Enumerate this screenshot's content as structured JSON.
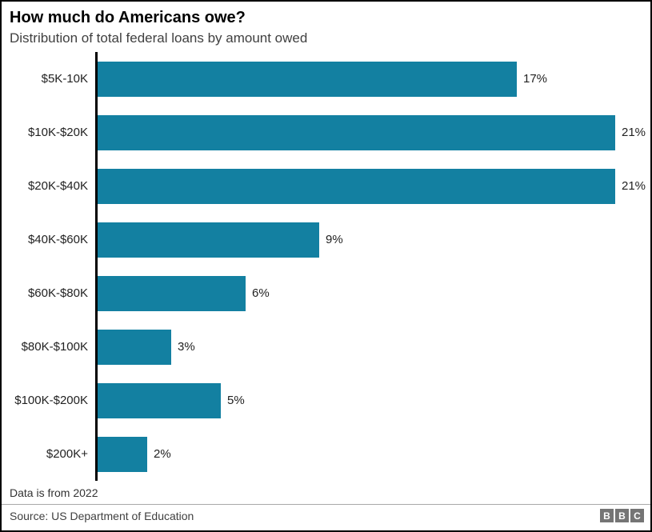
{
  "header": {
    "title": "How much do Americans owe?",
    "subtitle": "Distribution of total federal loans by amount owed"
  },
  "chart_data": {
    "type": "bar",
    "orientation": "horizontal",
    "title": "How much do Americans owe?",
    "subtitle": "Distribution of total federal loans by amount owed",
    "categories": [
      "$5K-10K",
      "$10K-$20K",
      "$20K-$40K",
      "$40K-$60K",
      "$60K-$80K",
      "$80K-$100K",
      "$100K-$200K",
      "$200K+"
    ],
    "values": [
      17,
      21,
      21,
      9,
      6,
      3,
      5,
      2
    ],
    "value_labels": [
      "17%",
      "21%",
      "21%",
      "9%",
      "6%",
      "3%",
      "5%",
      "2%"
    ],
    "unit": "%",
    "xlim": [
      0,
      21
    ],
    "grid": false,
    "legend": false,
    "bar_color": "#1380a1",
    "axis_color": "#000000"
  },
  "footer": {
    "note": "Data is from 2022",
    "source": "Source: US Department of Education",
    "logo_blocks": [
      "B",
      "B",
      "C"
    ]
  }
}
